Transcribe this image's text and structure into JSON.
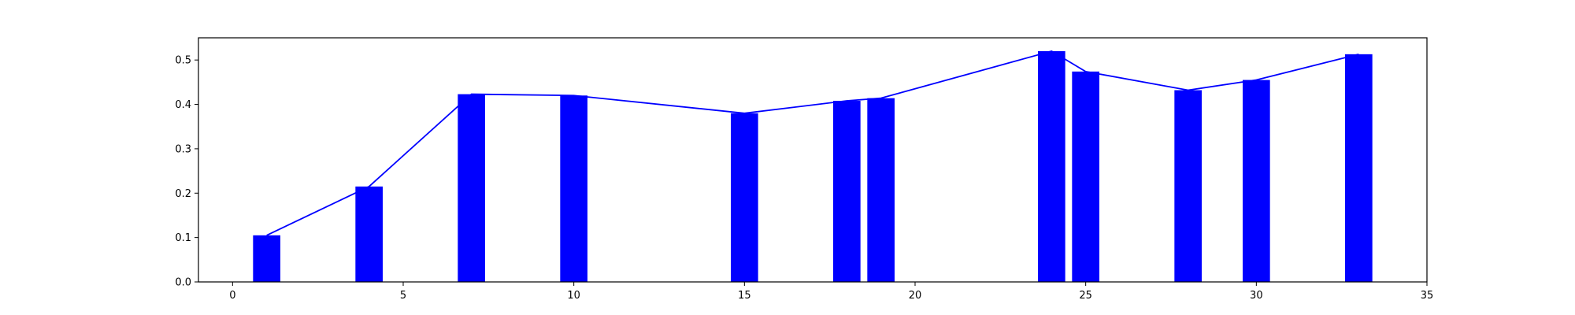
{
  "chart_data": {
    "type": "bar",
    "title": "",
    "xlabel": "",
    "ylabel": "",
    "xlim": [
      -1,
      35
    ],
    "ylim": [
      0,
      0.55
    ],
    "x_ticks": [
      0,
      5,
      10,
      15,
      20,
      25,
      30,
      35
    ],
    "y_ticks": [
      0.0,
      0.1,
      0.2,
      0.3,
      0.4,
      0.5
    ],
    "x_tick_labels": [
      "0",
      "5",
      "10",
      "15",
      "20",
      "25",
      "30",
      "35"
    ],
    "y_tick_labels": [
      "0.0",
      "0.1",
      "0.2",
      "0.3",
      "0.4",
      "0.5"
    ],
    "bar_width": 0.8,
    "grid": false,
    "series": [
      {
        "kind": "bar",
        "color": "#0000ff",
        "x": [
          1,
          4,
          7,
          10,
          15,
          18,
          19,
          24,
          25,
          28,
          30,
          33
        ],
        "values": [
          0.105,
          0.215,
          0.423,
          0.42,
          0.38,
          0.408,
          0.414,
          0.52,
          0.474,
          0.432,
          0.455,
          0.513
        ]
      },
      {
        "kind": "line",
        "color": "#0000ff",
        "x": [
          1,
          4,
          7,
          10,
          15,
          18,
          19,
          24,
          25,
          28,
          30,
          33
        ],
        "values": [
          0.105,
          0.215,
          0.423,
          0.42,
          0.38,
          0.408,
          0.414,
          0.52,
          0.474,
          0.432,
          0.455,
          0.513
        ]
      }
    ]
  }
}
